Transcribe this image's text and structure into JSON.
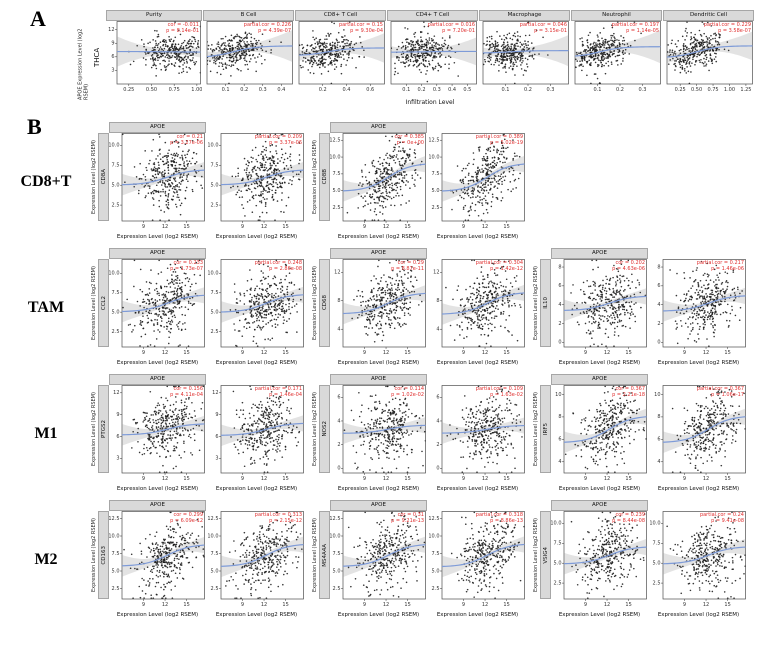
{
  "chart_data": {
    "type": "scatter",
    "colors": {
      "stat_text": "#e03030",
      "smooth_line": "#7e9bd8",
      "point": "#1a1a1a",
      "strip_bg": "#d9d9d9",
      "band": "#9c9c9c",
      "panel_border": "#4d4d4d"
    },
    "panelA": {
      "label": "A",
      "cancer": "THCA",
      "ylabel": "APOE Expression Level (log2 RSEM)",
      "xlabel": "Infiltration Level",
      "ylim": [
        0,
        13.8
      ],
      "yticks": [
        "3",
        "6",
        "9",
        "12"
      ],
      "plots": [
        {
          "title": "Purity",
          "stat_lines": [
            "cor = -0.011",
            "p = 8.14e-01"
          ],
          "cor": -0.011,
          "xticks": [
            "0.25",
            "0.50",
            "0.75",
            "1.00"
          ],
          "xlim": [
            0.12,
            1.04
          ],
          "xmean": 0.74,
          "xsd": 0.17
        },
        {
          "title": "B Cell",
          "stat_lines": [
            "partial.cor = 0.226",
            "p = 4.39e-07"
          ],
          "cor": 0.226,
          "xticks": [
            "0.1",
            "0.2",
            "0.3",
            "0.4"
          ],
          "xlim": [
            0.0,
            0.46
          ],
          "xmean": 0.14,
          "xsd": 0.08
        },
        {
          "title": "CD8+ T Cell",
          "stat_lines": [
            "partial.cor = 0.15",
            "p = 9.30e-04"
          ],
          "cor": 0.15,
          "xticks": [
            "0.2",
            "0.4",
            "0.6"
          ],
          "xlim": [
            0.0,
            0.72
          ],
          "xmean": 0.24,
          "xsd": 0.12
        },
        {
          "title": "CD4+ T Cell",
          "stat_lines": [
            "partial.cor = 0.016",
            "p = 7.20e-01"
          ],
          "cor": 0.016,
          "xticks": [
            "0.1",
            "0.2",
            "0.3",
            "0.4",
            "0.5"
          ],
          "xlim": [
            0.0,
            0.56
          ],
          "xmean": 0.2,
          "xsd": 0.1
        },
        {
          "title": "Macrophage",
          "stat_lines": [
            "partial.cor = 0.046",
            "p = 3.15e-01"
          ],
          "cor": 0.046,
          "xticks": [
            "0.1",
            "0.2",
            "0.3"
          ],
          "xlim": [
            0.0,
            0.38
          ],
          "xmean": 0.12,
          "xsd": 0.06
        },
        {
          "title": "Neutrophil",
          "stat_lines": [
            "partial.cor = 0.197",
            "p = 1.14e-05"
          ],
          "cor": 0.197,
          "xticks": [
            "0.1",
            "0.2",
            "0.3"
          ],
          "xlim": [
            0.0,
            0.38
          ],
          "xmean": 0.11,
          "xsd": 0.06
        },
        {
          "title": "Dendritic Cell",
          "stat_lines": [
            "partial.cor = 0.229",
            "p = 3.58e-07"
          ],
          "cor": 0.229,
          "xticks": [
            "0.25",
            "0.50",
            "0.75",
            "1.00",
            "1.25"
          ],
          "xlim": [
            0.05,
            1.35
          ],
          "xmean": 0.5,
          "xsd": 0.21
        }
      ]
    },
    "panelB": {
      "label": "B",
      "strip": "APOE",
      "xlabel": "Expression Level (log2 RSEM)",
      "ylabel": "Expression Level (log2 RSEM)",
      "xticks": [
        "9",
        "12",
        "15"
      ],
      "xlim": [
        6,
        17.5
      ],
      "rows": [
        {
          "label": "CD8+T",
          "pairs": [
            {
              "gene": "CD8A",
              "yticks": [
                "2.5",
                "5.0",
                "7.5",
                "10.0"
              ],
              "ylim": [
                0.5,
                11.5
              ],
              "plots": [
                {
                  "stat_lines": [
                    "cor = 0.21",
                    "p = 3.27e-06"
                  ],
                  "cor": 0.21
                },
                {
                  "stat_lines": [
                    "partial.cor = 0.209",
                    "p = 3.37e-06"
                  ],
                  "cor": 0.209
                }
              ]
            },
            {
              "gene": "CD8B",
              "yticks": [
                "2.5",
                "5.0",
                "7.5",
                "10.0",
                "12.5"
              ],
              "ylim": [
                0.5,
                13.5
              ],
              "plots": [
                {
                  "stat_lines": [
                    "cor = 0.385",
                    "p = 0e+00"
                  ],
                  "cor": 0.385
                },
                {
                  "stat_lines": [
                    "partial.cor = 0.389",
                    "p = 5.02e-19"
                  ],
                  "cor": 0.389
                }
              ]
            }
          ]
        },
        {
          "label": "TAM",
          "pairs": [
            {
              "gene": "CCL2",
              "yticks": [
                "2.5",
                "5.0",
                "7.5",
                "10.0"
              ],
              "ylim": [
                0.5,
                11.8
              ],
              "plots": [
                {
                  "stat_lines": [
                    "cor = 0.233",
                    "p = 1.73e-07"
                  ],
                  "cor": 0.233
                },
                {
                  "stat_lines": [
                    "partial.cor = 0.248",
                    "p = 2.86e-08"
                  ],
                  "cor": 0.248
                }
              ]
            },
            {
              "gene": "CD68",
              "yticks": [
                "4",
                "8",
                "12"
              ],
              "ylim": [
                1.5,
                13.8
              ],
              "plots": [
                {
                  "stat_lines": [
                    "cor = 0.29",
                    "p = 8.87e-11"
                  ],
                  "cor": 0.29
                },
                {
                  "stat_lines": [
                    "partial.cor = 0.304",
                    "p = 1.42e-12"
                  ],
                  "cor": 0.304
                }
              ]
            },
            {
              "gene": "IL10",
              "yticks": [
                "0",
                "2",
                "4",
                "6",
                "8"
              ],
              "ylim": [
                -0.5,
                8.8
              ],
              "plots": [
                {
                  "stat_lines": [
                    "cor = 0.202",
                    "p = 4.63e-06"
                  ],
                  "cor": 0.202
                },
                {
                  "stat_lines": [
                    "partial.cor = 0.217",
                    "p = 1.46e-06"
                  ],
                  "cor": 0.217
                }
              ]
            }
          ]
        },
        {
          "label": "M1",
          "pairs": [
            {
              "gene": "PTGS2",
              "yticks": [
                "3",
                "6",
                "9",
                "12"
              ],
              "ylim": [
                1.0,
                13.0
              ],
              "plots": [
                {
                  "stat_lines": [
                    "cor = 0.156",
                    "p = 4.11e-04"
                  ],
                  "cor": 0.156
                },
                {
                  "stat_lines": [
                    "partial.cor = 0.171",
                    "p = 1.46e-04"
                  ],
                  "cor": 0.171
                }
              ]
            },
            {
              "gene": "NOS2",
              "yticks": [
                "0",
                "2",
                "4",
                "6"
              ],
              "ylim": [
                -0.4,
                7.0
              ],
              "plots": [
                {
                  "stat_lines": [
                    "cor = 0.114",
                    "p = 1.02e-02"
                  ],
                  "cor": 0.114
                },
                {
                  "stat_lines": [
                    "partial.cor = 0.109",
                    "p = 1.63e-02"
                  ],
                  "cor": 0.109
                }
              ]
            },
            {
              "gene": "IRF5",
              "yticks": [
                "4",
                "6",
                "8",
                "10"
              ],
              "ylim": [
                3.0,
                10.8
              ],
              "plots": [
                {
                  "stat_lines": [
                    "cor = 0.367",
                    "p = 2.21e-18"
                  ],
                  "cor": 0.367
                },
                {
                  "stat_lines": [
                    "partial.cor = 0.367",
                    "p = 1.06e-17"
                  ],
                  "cor": 0.367
                }
              ]
            }
          ]
        },
        {
          "label": "M2",
          "pairs": [
            {
              "gene": "CD163",
              "yticks": [
                "2.5",
                "5.0",
                "7.5",
                "10.0",
                "12.5"
              ],
              "ylim": [
                1.0,
                13.5
              ],
              "plots": [
                {
                  "stat_lines": [
                    "cor = 0.299",
                    "p = 6.09e-12"
                  ],
                  "cor": 0.299
                },
                {
                  "stat_lines": [
                    "partial.cor = 0.313",
                    "p = 2.15e-12"
                  ],
                  "cor": 0.313
                }
              ]
            },
            {
              "gene": "MS4A4A",
              "yticks": [
                "2.5",
                "5.0",
                "7.5",
                "10.0",
                "12.5"
              ],
              "ylim": [
                1.0,
                13.5
              ],
              "plots": [
                {
                  "stat_lines": [
                    "cor = 0.31",
                    "p = 9.21e-13"
                  ],
                  "cor": 0.31
                },
                {
                  "stat_lines": [
                    "partial.cor = 0.318",
                    "p = 8.86e-13"
                  ],
                  "cor": 0.318
                }
              ]
            },
            {
              "gene": "VSIG4",
              "yticks": [
                "2.5",
                "5.0",
                "7.5",
                "10.0"
              ],
              "ylim": [
                0.5,
                11.5
              ],
              "plots": [
                {
                  "stat_lines": [
                    "cor = 0.239",
                    "p = 8.44e-08"
                  ],
                  "cor": 0.239
                },
                {
                  "stat_lines": [
                    "partial.cor = 0.24",
                    "p = 9.41e-08"
                  ],
                  "cor": 0.24
                }
              ]
            }
          ]
        }
      ]
    }
  }
}
